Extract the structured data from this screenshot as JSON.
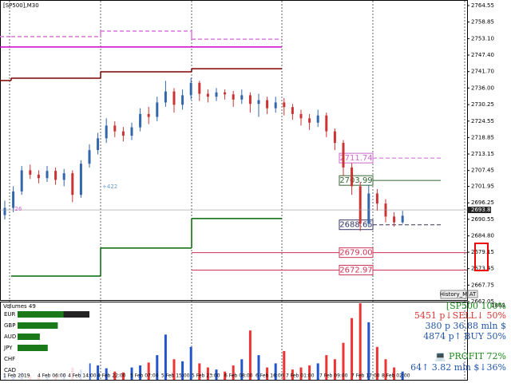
{
  "chart_data": {
    "type": "candlestick",
    "title": "[SP500],M30",
    "ylim": [
      2662.6,
      2766.2
    ],
    "yticks": [
      2764.55,
      2758.85,
      {
        "value": 2753.1,
        "label": "2753.10"
      },
      {
        "value": 2747.4,
        "label": "2747.40"
      },
      {
        "value": 2741.7,
        "label": "2741.70"
      },
      {
        "value": 2736.0,
        "label": "2736.00"
      },
      2730.25,
      2724.55,
      2718.85,
      2713.15,
      2707.45,
      2701.95,
      2696.25,
      2690.55,
      {
        "value": 2684.8,
        "label": "2684.80"
      },
      2679.15,
      2673.45,
      2667.75,
      2662.05
    ],
    "open": [
      2692.0,
      2694.5,
      2700.2,
      2707.5,
      2706.0,
      2704.8,
      2707.3,
      2704.2,
      2706.5,
      2699.0,
      2709.8,
      2714.5,
      2718.6,
      2723.0,
      2721.0,
      2719.5,
      2722.4,
      2727.0,
      2726.0,
      2731.0,
      2734.8,
      2730.2,
      2733.5,
      2737.8,
      2734.0,
      2733.0,
      2734.5,
      2733.8,
      2732.0,
      2733.5,
      2730.5,
      2731.8,
      2729.0,
      2731.0,
      2729.4,
      2727.0,
      2725.5,
      2724.0,
      2726.5,
      2721.0,
      2717.0,
      2708.5,
      2702.0,
      2689.0,
      2699.5,
      2696.0,
      2691.5,
      2689.5
    ],
    "high": [
      2697.0,
      2702.0,
      2709.0,
      2709.5,
      2707.5,
      2709.0,
      2708.5,
      2708.0,
      2707.5,
      2711.0,
      2716.5,
      2720.5,
      2725.5,
      2724.5,
      2722.5,
      2724.0,
      2729.0,
      2729.5,
      2733.0,
      2738.5,
      2736.0,
      2735.5,
      2739.5,
      2738.5,
      2735.5,
      2736.0,
      2735.5,
      2735.0,
      2735.5,
      2734.5,
      2734.0,
      2733.0,
      2733.0,
      2732.5,
      2730.5,
      2728.5,
      2727.0,
      2728.5,
      2727.5,
      2722.0,
      2718.0,
      2710.0,
      2703.5,
      2702.5,
      2701.0,
      2697.5,
      2693.0,
      2693.5
    ],
    "low": [
      2690.5,
      2693.0,
      2699.0,
      2704.5,
      2703.0,
      2703.5,
      2702.5,
      2702.0,
      2696.5,
      2698.0,
      2708.5,
      2713.0,
      2717.0,
      2719.0,
      2717.5,
      2718.0,
      2721.0,
      2723.5,
      2724.5,
      2729.5,
      2727.5,
      2728.5,
      2732.0,
      2731.5,
      2731.0,
      2731.5,
      2732.0,
      2729.5,
      2730.5,
      2727.5,
      2726.0,
      2727.0,
      2727.5,
      2726.5,
      2725.0,
      2723.0,
      2721.5,
      2722.5,
      2719.0,
      2714.5,
      2705.5,
      2699.0,
      2686.5,
      2688.0,
      2693.5,
      2689.5,
      2688.0,
      2689.0
    ],
    "close": [
      2694.5,
      2700.2,
      2707.5,
      2706.0,
      2704.8,
      2707.3,
      2704.2,
      2706.5,
      2699.0,
      2709.8,
      2714.5,
      2718.6,
      2723.0,
      2721.0,
      2719.5,
      2722.4,
      2727.0,
      2726.0,
      2731.0,
      2734.8,
      2730.2,
      2733.5,
      2737.8,
      2734.0,
      2733.0,
      2734.5,
      2733.8,
      2732.0,
      2733.5,
      2730.5,
      2731.8,
      2729.0,
      2731.0,
      2729.4,
      2727.0,
      2725.5,
      2724.0,
      2726.5,
      2721.0,
      2717.0,
      2708.5,
      2702.0,
      2689.0,
      2699.5,
      2696.0,
      2691.5,
      2689.5,
      2691.8
    ],
    "last_price": {
      "value": 2693.8,
      "label": "2693.80"
    },
    "levels": {
      "values": [
        2711.74,
        2703.99,
        2688.65,
        2679.0,
        2672.97
      ],
      "value_labels": [
        "2711.74",
        "2703.99",
        "2688.65",
        "2679.00",
        "2672.97"
      ],
      "colors": [
        "#cc66cc",
        "#336633",
        "#333366",
        "#cc3355",
        "#cc3355"
      ]
    },
    "step_lines": [
      {
        "color": "#800000",
        "values": [
          2738.6,
          2739.4,
          2741.6,
          2742.7
        ]
      },
      {
        "color": "#cc00cc",
        "values": [
          2750.2,
          2750.2,
          2750.2,
          2750.2
        ]
      },
      {
        "color": "#dd77dd",
        "values": [
          2753.8,
          2753.8,
          2755.7,
          2752.9
        ],
        "dashed": true
      },
      {
        "color": "#006600",
        "values": [
          null,
          2670.9,
          2680.6,
          2690.8
        ]
      }
    ],
    "annotations": [
      "+422",
      "-26"
    ],
    "x_labels": [
      "1 Feb 2019",
      "4 Feb 06:00",
      "4 Feb 14:00",
      "4 Feb 22:00",
      "5 Feb 07:00",
      "5 Feb 15:00",
      "5 Feb 23:00",
      "6 Feb 08:00",
      "6 Feb 16:00",
      "7 Feb 01:00",
      "7 Feb 09:00",
      "7 Feb 17:00",
      "8 Feb 02:00"
    ],
    "volume": {
      "title": "Volumes 49",
      "ylim": [
        0,
        1863
      ],
      "yticks": [
        1863
      ],
      "values": [
        150,
        120,
        180,
        100,
        90,
        130,
        110,
        160,
        300,
        250,
        400,
        350,
        280,
        200,
        180,
        300,
        350,
        420,
        600,
        1100,
        500,
        450,
        800,
        400,
        300,
        250,
        200,
        350,
        500,
        1200,
        600,
        300,
        400,
        700,
        250,
        300,
        350,
        400,
        600,
        500,
        900,
        1500,
        1863,
        1400,
        800,
        500,
        300,
        200
      ]
    },
    "currencies": {
      "names": [
        "EUR",
        "GBP",
        "AUD",
        "JPY",
        "CHF",
        "CAD"
      ],
      "values": [
        64,
        56,
        31,
        42,
        0,
        0
      ]
    },
    "info": [
      "[SP500 100%",
      "5451 p↓SELL↓ 50%",
      "380 p  36.88 mln $",
      "4874 p↑ BUY 50%",
      "💻 PROFIT 72%",
      "64↑  3.82 mln $↓36%"
    ],
    "buttons": [
      "History_M",
      "AT"
    ]
  }
}
